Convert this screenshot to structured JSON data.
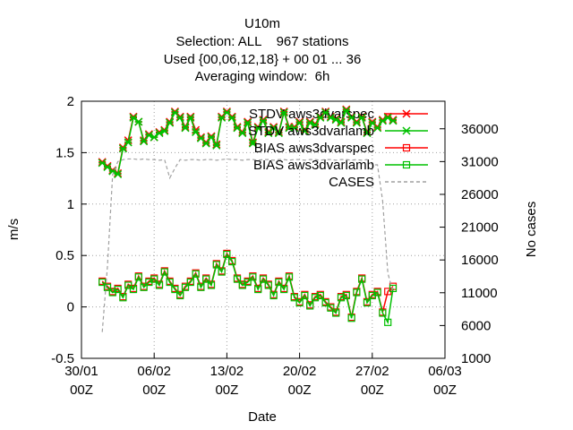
{
  "chart_data": {
    "type": "line",
    "title": [
      "U10m",
      "Selection: ALL    967 stations",
      "Used {00,06,12,18} + 00 01 ... 36",
      "Averaging window:  6h"
    ],
    "xlabel": "Date",
    "ylabel": "m/s",
    "y2label": "No cases",
    "x": [
      2,
      2.5,
      3,
      3.5,
      4,
      4.5,
      5,
      5.5,
      6,
      6.5,
      7,
      7.5,
      8,
      8.5,
      9,
      9.5,
      10,
      10.5,
      11,
      11.5,
      12,
      12.5,
      13,
      13.5,
      14,
      14.5,
      15,
      15.5,
      16,
      16.5,
      17,
      17.5,
      18,
      18.5,
      19,
      19.5,
      20,
      20.5,
      21,
      21.5,
      22,
      22.5,
      23,
      23.5,
      24,
      24.5,
      25,
      25.5,
      26,
      26.5,
      27,
      27.5,
      28,
      28.5,
      29,
      29.5,
      30
    ],
    "xlim": [
      0,
      35
    ],
    "xticks": [
      {
        "value": 0,
        "label": "30/01\n00Z"
      },
      {
        "value": 7,
        "label": "06/02\n00Z"
      },
      {
        "value": 14,
        "label": "13/02\n00Z"
      },
      {
        "value": 21,
        "label": "20/02\n00Z"
      },
      {
        "value": 28,
        "label": "27/02\n00Z"
      },
      {
        "value": 35,
        "label": "06/03\n00Z"
      }
    ],
    "ylim": [
      -0.5,
      2
    ],
    "yticks": [
      -0.5,
      0,
      0.5,
      1,
      1.5,
      2
    ],
    "y2lim": [
      1000,
      40200
    ],
    "y2ticks": [
      1000,
      6000,
      11000,
      16000,
      21000,
      26000,
      31000,
      36000
    ],
    "grid": true,
    "legend": "top-right",
    "series": [
      {
        "name": "STDV aws3dvarspec",
        "color": "#ff0000",
        "marker": "x",
        "values": [
          1.41,
          1.37,
          1.33,
          1.3,
          1.55,
          1.62,
          1.85,
          1.8,
          1.62,
          1.68,
          1.65,
          1.7,
          1.72,
          1.8,
          1.9,
          1.85,
          1.75,
          1.85,
          1.72,
          1.65,
          1.6,
          1.66,
          1.58,
          1.85,
          1.9,
          1.85,
          1.75,
          1.7,
          1.8,
          1.6,
          1.75,
          1.82,
          1.7,
          1.75,
          1.7,
          1.9,
          1.75,
          1.75,
          1.8,
          1.72,
          1.8,
          1.78,
          1.85,
          1.9,
          1.85,
          1.83,
          1.8,
          1.92,
          1.85,
          1.8,
          1.85,
          1.7,
          1.8,
          1.75,
          1.82,
          1.85,
          1.82
        ]
      },
      {
        "name": "STDV aws3dvarlamb",
        "color": "#00c000",
        "marker": "x",
        "values": [
          1.4,
          1.36,
          1.32,
          1.29,
          1.54,
          1.6,
          1.84,
          1.8,
          1.61,
          1.67,
          1.65,
          1.69,
          1.71,
          1.79,
          1.89,
          1.84,
          1.74,
          1.84,
          1.7,
          1.64,
          1.59,
          1.65,
          1.57,
          1.84,
          1.89,
          1.84,
          1.74,
          1.69,
          1.79,
          1.59,
          1.74,
          1.81,
          1.69,
          1.74,
          1.69,
          1.89,
          1.74,
          1.74,
          1.79,
          1.71,
          1.79,
          1.77,
          1.84,
          1.89,
          1.84,
          1.82,
          1.79,
          1.91,
          1.84,
          1.79,
          1.84,
          1.69,
          1.79,
          1.74,
          1.81,
          1.84,
          1.81
        ]
      },
      {
        "name": "BIAS aws3dvarspec",
        "color": "#ff0000",
        "marker": "square",
        "values": [
          0.25,
          0.2,
          0.15,
          0.18,
          0.1,
          0.22,
          0.18,
          0.3,
          0.2,
          0.25,
          0.28,
          0.22,
          0.35,
          0.25,
          0.18,
          0.12,
          0.2,
          0.25,
          0.33,
          0.2,
          0.28,
          0.22,
          0.42,
          0.35,
          0.52,
          0.45,
          0.28,
          0.22,
          0.25,
          0.3,
          0.18,
          0.28,
          0.22,
          0.12,
          0.25,
          0.18,
          0.3,
          0.1,
          0.05,
          0.12,
          0.02,
          0.1,
          0.12,
          0.05,
          0.0,
          -0.05,
          0.1,
          0.12,
          -0.1,
          0.15,
          0.28,
          0.05,
          0.12,
          0.15,
          -0.05,
          0.15,
          0.2
        ]
      },
      {
        "name": "BIAS aws3dvarlamb",
        "color": "#00c000",
        "marker": "square",
        "values": [
          0.24,
          0.19,
          0.14,
          0.17,
          0.09,
          0.21,
          0.17,
          0.29,
          0.19,
          0.24,
          0.27,
          0.21,
          0.34,
          0.24,
          0.17,
          0.11,
          0.19,
          0.24,
          0.32,
          0.19,
          0.27,
          0.21,
          0.41,
          0.34,
          0.51,
          0.44,
          0.27,
          0.21,
          0.24,
          0.29,
          0.17,
          0.27,
          0.21,
          0.11,
          0.24,
          0.17,
          0.29,
          0.09,
          0.04,
          0.11,
          0.01,
          0.09,
          0.11,
          0.04,
          -0.01,
          -0.06,
          0.09,
          0.11,
          -0.11,
          0.14,
          0.27,
          0.04,
          0.11,
          0.14,
          -0.06,
          -0.15,
          0.18
        ]
      },
      {
        "name": "CASES",
        "color": "#a0a0a0",
        "dash": true,
        "axis": "y2",
        "values": [
          5000,
          15000,
          29000,
          31000,
          31300,
          31400,
          31400,
          31300,
          31400,
          31300,
          31300,
          31200,
          31300,
          28500,
          30000,
          31300,
          31200,
          31300,
          31300,
          31200,
          31300,
          31300,
          31200,
          31300,
          31400,
          31300,
          31300,
          31200,
          31300,
          31300,
          31200,
          31300,
          31300,
          31200,
          31300,
          31300,
          31200,
          31300,
          31300,
          31200,
          31300,
          31300,
          31200,
          31300,
          31300,
          31200,
          31300,
          31300,
          31200,
          31300,
          31200,
          31300,
          30500,
          30500,
          25000,
          14000,
          11000
        ]
      }
    ]
  }
}
